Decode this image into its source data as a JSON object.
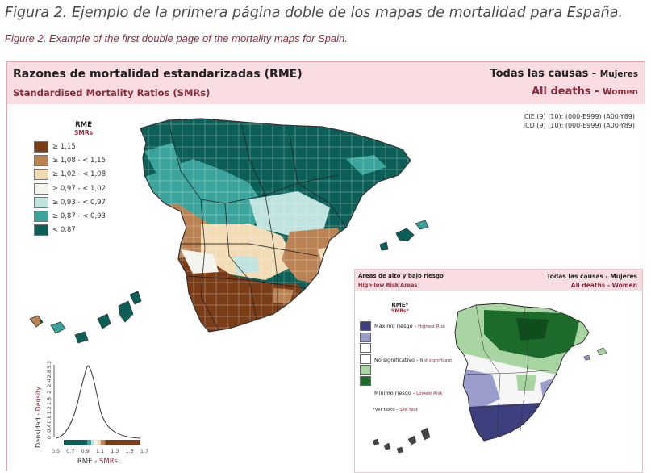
{
  "caption": {
    "es": "Figura 2. Ejemplo de la primera página doble de los mapas de mortalidad para España.",
    "en": "Figure 2. Example of the first double page of the mortality maps for Spain."
  },
  "header": {
    "title_es": "Razones de mortalidad estandarizadas (RME)",
    "title_en": "Standardised Mortality Ratios (SMRs)",
    "cause_es": "Todas las causas",
    "sex_es": "Mujeres",
    "cause_en": "All deaths",
    "sex_en": "Women",
    "dash": " - "
  },
  "codes": {
    "cie": "CIE (9) (10): (000-E999) (A00-Y89)",
    "icd": "ICD (9) (10): (000-E999) (A00-Y89)"
  },
  "legend": {
    "title": "RME",
    "subtitle": "SMRs",
    "items": [
      {
        "label": "≥ 1,15",
        "color": "#7a3d17"
      },
      {
        "label": "≥ 1,08 - < 1,15",
        "color": "#bb8354"
      },
      {
        "label": "≥ 1,02 - < 1,08",
        "color": "#f2dcb5"
      },
      {
        "label": "≥ 0,97 - < 1,02",
        "color": "#f4f4ee"
      },
      {
        "label": "≥ 0,93 - < 0,97",
        "color": "#bfe3df"
      },
      {
        "label": "≥ 0,87 - < 0,93",
        "color": "#3aa39b"
      },
      {
        "label": "< 0,87",
        "color": "#0b5f56"
      }
    ]
  },
  "density": {
    "ylabel_es": "Densidad",
    "ylabel_en": "Density",
    "xlabel_es": "RME",
    "xlabel_en": "SMRs",
    "dash": " - ",
    "yticks": [
      "0",
      "0.4",
      "0.8",
      "1.2",
      "1.6",
      "2",
      "2.4",
      "2.8",
      "3.2"
    ],
    "xticks": [
      "0.5",
      "0.7",
      "0.9",
      "1.1",
      "1.3",
      "1.5",
      "1.7"
    ]
  },
  "inset": {
    "title_es": "Áreas de alto y bajo riesgo",
    "title_en": "High-low Risk Areas",
    "cause_es": "Todas las causas",
    "sex_es": "Mujeres",
    "cause_en": "All deaths",
    "sex_en": "Women",
    "dash": " - ",
    "legend_title": "RME*",
    "legend_subtitle": "SMRs*",
    "colors": [
      "#3d3f7e",
      "#9a9ccb",
      "#ffffff",
      "#a8d5a2",
      "#1d6b2a"
    ],
    "high_es": "Máximo riesgo",
    "high_en": "Highest Risk",
    "mid_es": "No significativo",
    "mid_en": "Not significant",
    "low_es": "Mínimo riesgo",
    "low_en": "Lowest Risk",
    "note_es": "*Ver texto",
    "note_en": "See text"
  }
}
